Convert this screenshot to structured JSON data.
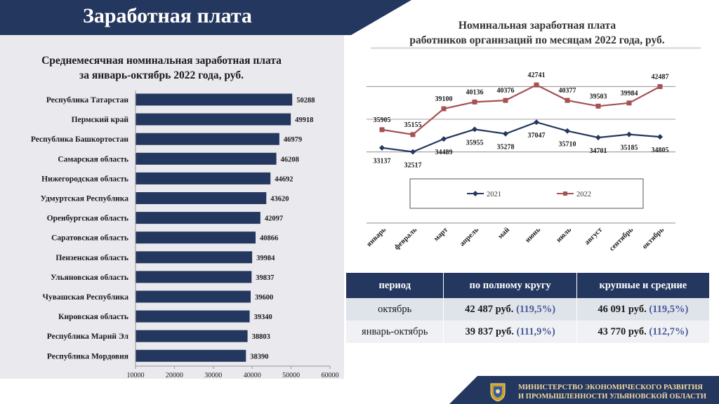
{
  "page": {
    "title": "Заработная плата"
  },
  "colors": {
    "navy": "#24375f",
    "series_2021": "#24375f",
    "series_2022": "#a55252",
    "gold": "#c9a227"
  },
  "chart_data": [
    {
      "type": "bar",
      "orientation": "horizontal",
      "title": "Среднемесячная номинальная заработная плата за январь-октябрь 2022 года, руб.",
      "title_lines": [
        "Среднемесячная номинальная заработная плата",
        "за январь-октябрь 2022 года, руб."
      ],
      "categories": [
        "Республика Татарстан",
        "Пермский край",
        "Республика Башкортостан",
        "Самарская область",
        "Нижегородская область",
        "Удмуртская Республика",
        "Оренбургская область",
        "Саратовская область",
        "Пензенская область",
        "Ульяновская область",
        "Чувашская Республика",
        "Кировская область",
        "Республика Марий Эл",
        "Республика Мордовия"
      ],
      "values": [
        50288,
        49918,
        46979,
        46208,
        44692,
        43620,
        42097,
        40866,
        39984,
        39837,
        39600,
        39340,
        38803,
        38390
      ],
      "xlim": [
        10000,
        60000
      ],
      "xticks": [
        "10000",
        "20000",
        "30000",
        "40000",
        "50000",
        "60000"
      ],
      "grid": false
    },
    {
      "type": "line",
      "title": "Номинальная заработная плата работников организаций по месяцам 2022 года, руб.",
      "title_lines": [
        "Номинальная заработная плата",
        "работников организаций по месяцам 2022 года, руб."
      ],
      "categories": [
        "январь",
        "февраль",
        "март",
        "апрель",
        "май",
        "июнь",
        "июль",
        "август",
        "сентябрь",
        "октябрь"
      ],
      "series": [
        {
          "name": "2021",
          "values": [
            33137,
            32517,
            34489,
            35955,
            35278,
            37047,
            35710,
            34701,
            35185,
            34805
          ]
        },
        {
          "name": "2022",
          "values": [
            35905,
            35155,
            39100,
            40136,
            40376,
            42741,
            40377,
            39503,
            39984,
            42487
          ]
        }
      ],
      "legend": "bottom",
      "grid": true
    }
  ],
  "table": {
    "headers": [
      "период",
      "по полному кругу",
      "крупные и средние"
    ],
    "rows": [
      {
        "period": "октябрь",
        "full": "42 487 руб.",
        "full_pct": "(119,5%)",
        "large": "46 091 руб.",
        "large_pct": "(119,5%)"
      },
      {
        "period": "январь-октябрь",
        "full": "39 837 руб.",
        "full_pct": "(111,9%)",
        "large": "43 770 руб.",
        "large_pct": "(112,7%)"
      }
    ]
  },
  "footer": {
    "line1": "МИНИСТЕРСТВО ЭКОНОМИЧЕСКОГО РАЗВИТИЯ",
    "line2": "И ПРОМЫШЛЕННОСТИ УЛЬЯНОВСКОЙ ОБЛАСТИ",
    "emblem_icon": "coat-of-arms-icon"
  }
}
